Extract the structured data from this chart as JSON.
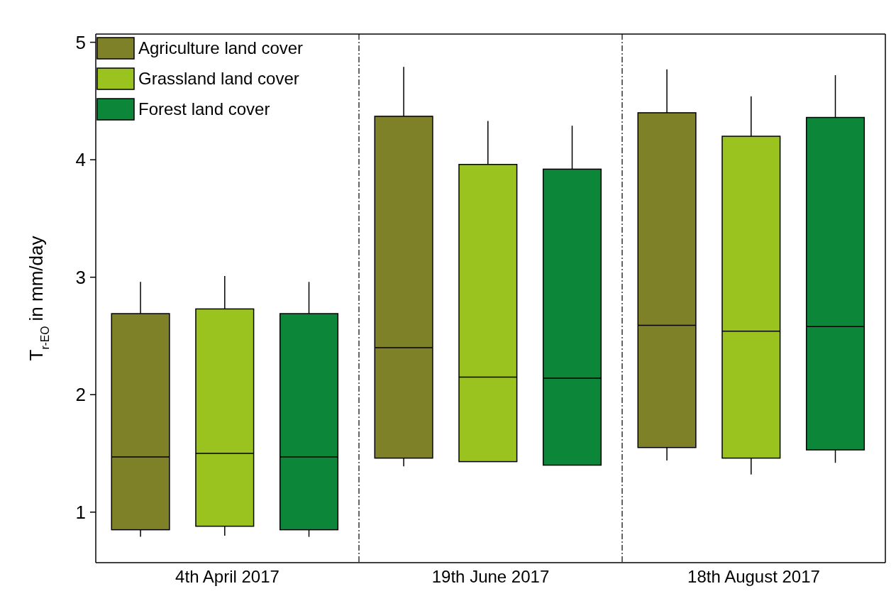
{
  "chart_data": {
    "type": "box",
    "ylabel": "T$_{r-EO}$ in mm/day",
    "categories": [
      "4th April 2017",
      "19th June 2017",
      "18th August 2017"
    ],
    "ylim": [
      0.57,
      5.07
    ],
    "yticks": [
      1,
      2,
      3,
      4,
      5
    ],
    "grid": false,
    "legend": "top left",
    "series": [
      {
        "name": "Agriculture land cover",
        "color": "#7f8128",
        "boxes": [
          {
            "low": 0.79,
            "q1": 0.85,
            "median": 1.47,
            "q3": 2.69,
            "high": 2.96
          },
          {
            "low": 1.39,
            "q1": 1.46,
            "median": 2.4,
            "q3": 4.37,
            "high": 4.79
          },
          {
            "low": 1.44,
            "q1": 1.55,
            "median": 2.59,
            "q3": 4.4,
            "high": 4.77
          }
        ]
      },
      {
        "name": "Grassland land cover",
        "color": "#9ac31f",
        "boxes": [
          {
            "low": 0.8,
            "q1": 0.88,
            "median": 1.5,
            "q3": 2.73,
            "high": 3.01
          },
          {
            "low": 1.43,
            "q1": 1.43,
            "median": 2.15,
            "q3": 3.96,
            "high": 4.33
          },
          {
            "low": 1.32,
            "q1": 1.46,
            "median": 2.54,
            "q3": 4.2,
            "high": 4.54
          }
        ]
      },
      {
        "name": "Forest land cover",
        "color": "#0c8638",
        "boxes": [
          {
            "low": 0.79,
            "q1": 0.85,
            "median": 1.47,
            "q3": 2.69,
            "high": 2.96
          },
          {
            "low": 1.4,
            "q1": 1.4,
            "median": 2.14,
            "q3": 3.92,
            "high": 4.29
          },
          {
            "low": 1.42,
            "q1": 1.53,
            "median": 2.58,
            "q3": 4.36,
            "high": 4.72
          }
        ]
      }
    ]
  }
}
